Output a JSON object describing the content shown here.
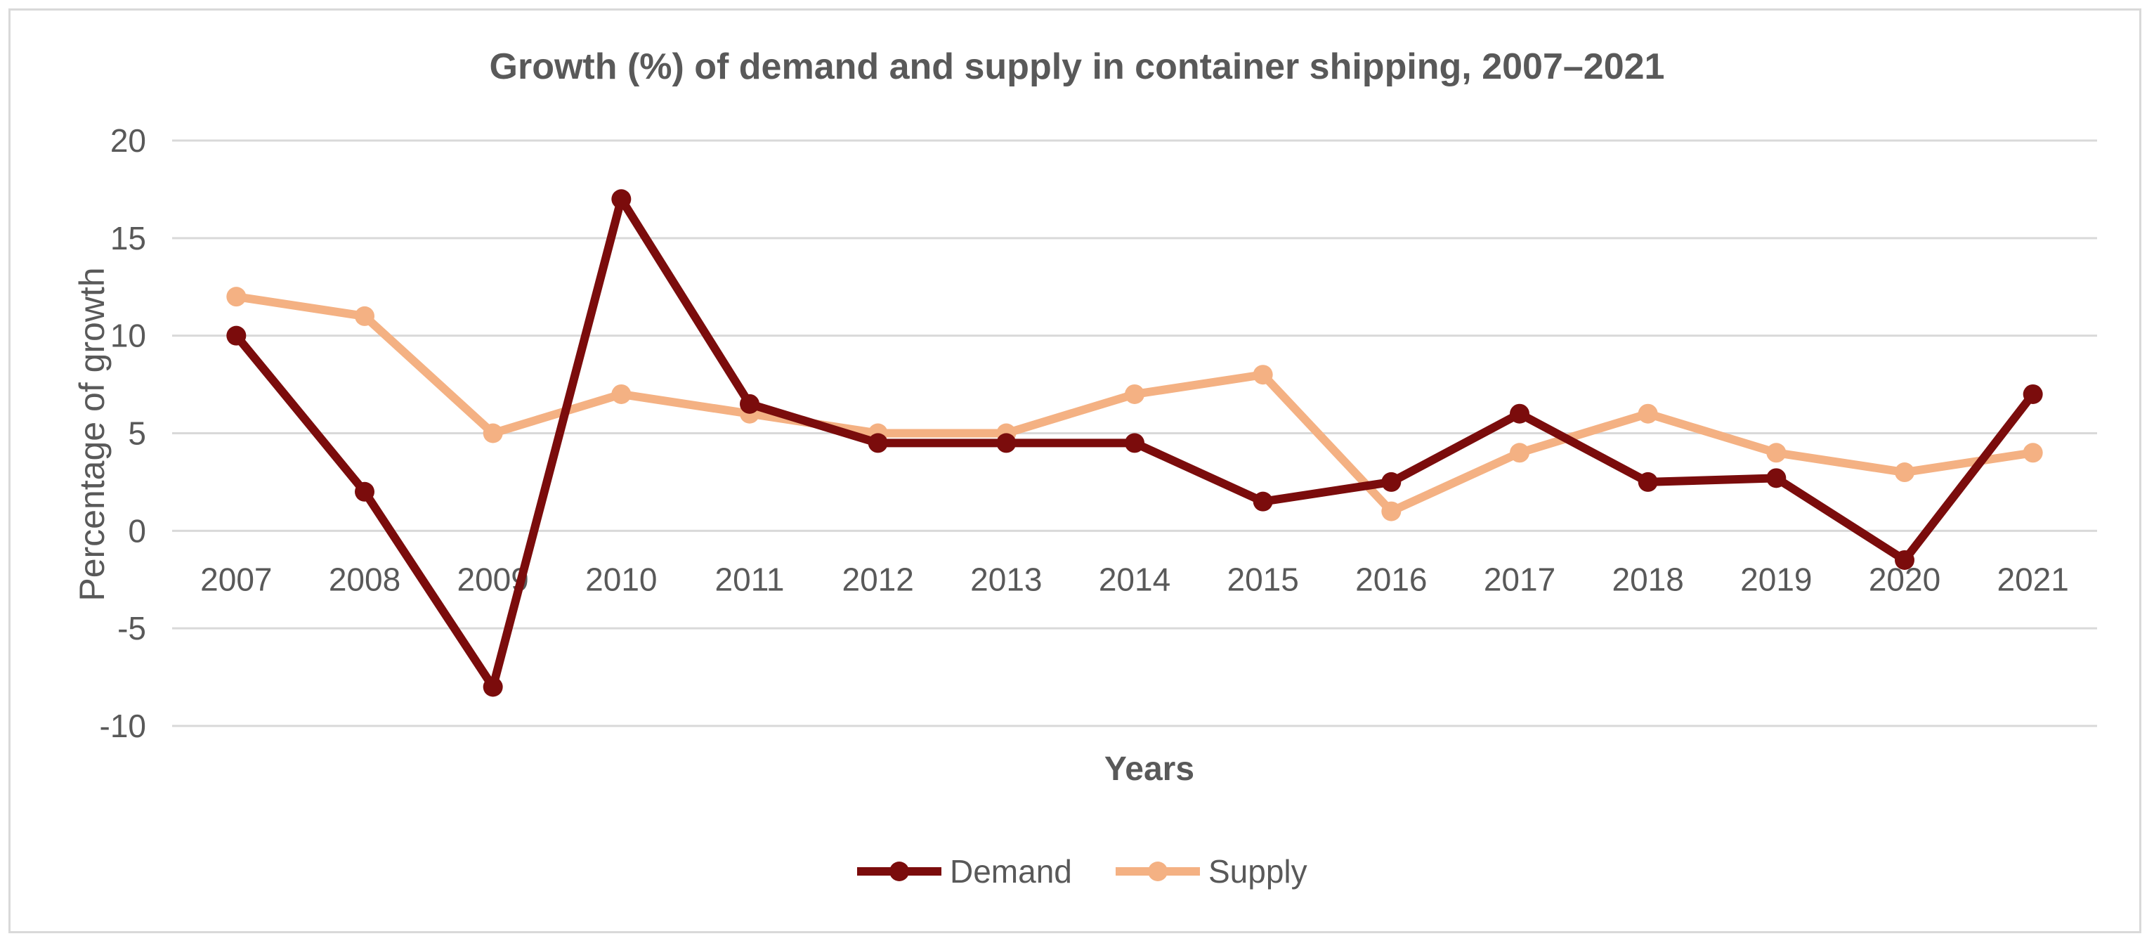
{
  "chart_data": {
    "type": "line",
    "title": "Growth (%) of demand and supply in container shipping, 2007–2021",
    "xlabel": "Years",
    "ylabel": "Percentage of growth",
    "ylim": [
      -10,
      20
    ],
    "yticks": [
      "20",
      "15",
      "10",
      "5",
      "0",
      "-5",
      "-10"
    ],
    "categories": [
      "2007",
      "2008",
      "2009",
      "2010",
      "2011",
      "2012",
      "2013",
      "2014",
      "2015",
      "2016",
      "2017",
      "2018",
      "2019",
      "2020",
      "2021"
    ],
    "grid": true,
    "legend_position": "bottom",
    "series": [
      {
        "name": "Demand",
        "color": "#7b0c0c",
        "values": [
          10,
          2,
          -8,
          17,
          6.5,
          4.5,
          4.5,
          4.5,
          1.5,
          2.5,
          6,
          2.5,
          2.7,
          -1.5,
          7
        ]
      },
      {
        "name": "Supply",
        "color": "#f4b183",
        "values": [
          12,
          11,
          5,
          7,
          6,
          5,
          5,
          7,
          8,
          1,
          4,
          6,
          4,
          3,
          4
        ]
      }
    ]
  }
}
